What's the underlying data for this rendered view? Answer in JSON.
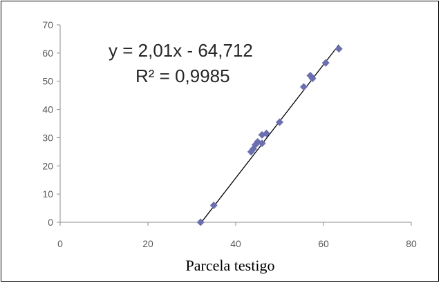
{
  "chart_data": {
    "type": "scatter",
    "xlabel": "Parcela testigo",
    "ylabel": "",
    "xlim": [
      0,
      80
    ],
    "ylim": [
      0,
      70
    ],
    "xticks": [
      "0",
      "20",
      "40",
      "60",
      "80"
    ],
    "yticks": [
      "0",
      "10",
      "20",
      "30",
      "40",
      "50",
      "60",
      "70"
    ],
    "grid": false,
    "points": [
      {
        "x": 32.0,
        "y": 0.0
      },
      {
        "x": 35.0,
        "y": 6.0
      },
      {
        "x": 43.5,
        "y": 25.0
      },
      {
        "x": 44.0,
        "y": 26.0
      },
      {
        "x": 44.5,
        "y": 27.5
      },
      {
        "x": 45.0,
        "y": 28.5
      },
      {
        "x": 46.0,
        "y": 28.0
      },
      {
        "x": 46.0,
        "y": 31.0
      },
      {
        "x": 47.0,
        "y": 31.5
      },
      {
        "x": 50.0,
        "y": 35.5
      },
      {
        "x": 55.5,
        "y": 48.0
      },
      {
        "x": 57.0,
        "y": 52.0
      },
      {
        "x": 57.5,
        "y": 51.0
      },
      {
        "x": 60.5,
        "y": 56.5
      },
      {
        "x": 63.5,
        "y": 61.5
      }
    ],
    "trendline": {
      "slope": 2.01,
      "intercept": -64.712,
      "x_range": [
        32.2,
        63.5
      ]
    },
    "annotations": {
      "equation": "y = 2,01x - 64,712",
      "r_squared": "R² = 0,9985"
    },
    "marker_color": "#6b6fb0",
    "line_color": "#000000",
    "axis_color": "#8c8c8c"
  }
}
